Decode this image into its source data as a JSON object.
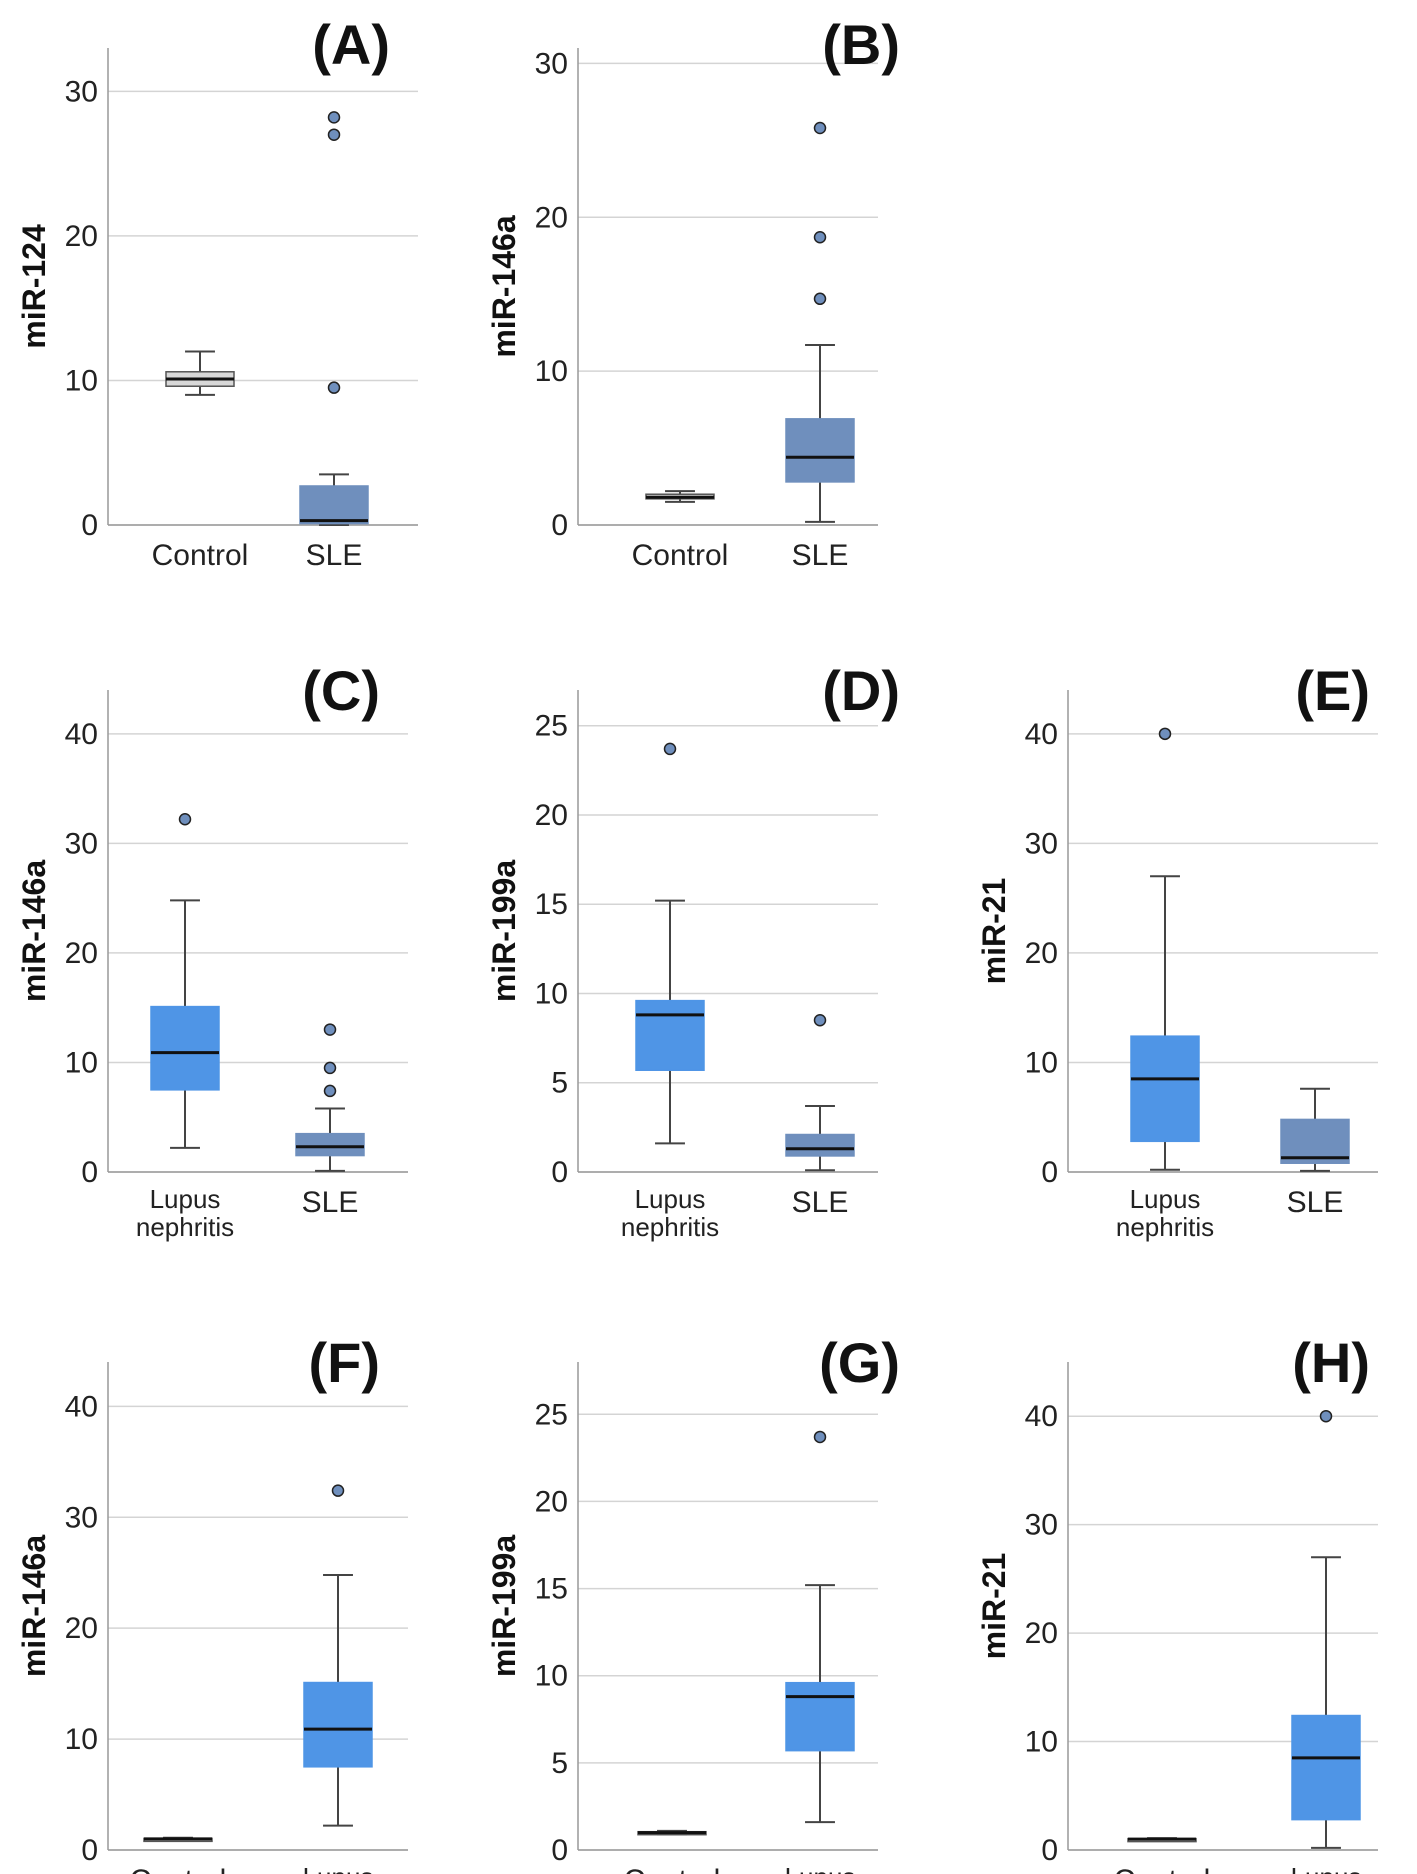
{
  "colors": {
    "box_blue": "#4f95e6",
    "box_slate": "#6f8fbd",
    "box_gray": "#d8d8d8",
    "grid": "#d4d4d4",
    "outlier_fill": "#6f8fbd"
  },
  "chart_data": [
    {
      "type": "boxplot",
      "panel": "(A)",
      "letter": "A",
      "ylabel": "miR-124",
      "ylim": [
        0,
        33
      ],
      "yticks": [
        0,
        10,
        20,
        30
      ],
      "categories": [
        "Control",
        "SLE"
      ],
      "series": [
        {
          "name": "Control",
          "color": "#d8d8d8",
          "min": 9,
          "q1": 9.6,
          "median": 10.1,
          "q3": 10.6,
          "max": 12,
          "outliers": []
        },
        {
          "name": "SLE",
          "color": "#6f8fbd",
          "min": 0,
          "q1": 0.1,
          "median": 0.3,
          "q3": 2.7,
          "max": 3.5,
          "outliers": [
            9.5,
            27,
            28.2
          ]
        }
      ]
    },
    {
      "type": "boxplot",
      "panel": "(B)",
      "letter": "B",
      "ylabel": "miR-146a",
      "ylim": [
        0,
        31
      ],
      "yticks": [
        0,
        10,
        20,
        30
      ],
      "categories": [
        "Control",
        "SLE"
      ],
      "series": [
        {
          "name": "Control",
          "color": "#d8d8d8",
          "min": 1.5,
          "q1": 1.7,
          "median": 1.8,
          "q3": 2.0,
          "max": 2.2,
          "outliers": []
        },
        {
          "name": "SLE",
          "color": "#6f8fbd",
          "min": 0.2,
          "q1": 2.8,
          "median": 4.4,
          "q3": 6.9,
          "max": 11.7,
          "outliers": [
            14.7,
            18.7,
            25.8
          ]
        }
      ]
    },
    {
      "type": "boxplot",
      "panel": "(C)",
      "letter": "C",
      "ylabel": "miR-146a",
      "ylim": [
        0,
        44
      ],
      "yticks": [
        0,
        10,
        20,
        30,
        40
      ],
      "categories": [
        "Lupus nephritis",
        "SLE"
      ],
      "series": [
        {
          "name": "Lupus nephritis",
          "color": "#4f95e6",
          "min": 2.2,
          "q1": 7.5,
          "median": 10.9,
          "q3": 15.1,
          "max": 24.8,
          "outliers": [
            32.2
          ]
        },
        {
          "name": "SLE",
          "color": "#6f8fbd",
          "min": 0.1,
          "q1": 1.5,
          "median": 2.3,
          "q3": 3.5,
          "max": 5.8,
          "outliers": [
            7.4,
            9.5,
            13
          ]
        }
      ]
    },
    {
      "type": "boxplot",
      "panel": "(D)",
      "letter": "D",
      "ylabel": "miR-199a",
      "ylim": [
        0,
        27
      ],
      "yticks": [
        0,
        5,
        10,
        15,
        20,
        25
      ],
      "categories": [
        "Lupus nephritis",
        "SLE"
      ],
      "series": [
        {
          "name": "Lupus nephritis",
          "color": "#4f95e6",
          "min": 1.6,
          "q1": 5.7,
          "median": 8.8,
          "q3": 9.6,
          "max": 15.2,
          "outliers": [
            23.7
          ]
        },
        {
          "name": "SLE",
          "color": "#6f8fbd",
          "min": 0.1,
          "q1": 0.9,
          "median": 1.3,
          "q3": 2.1,
          "max": 3.7,
          "outliers": [
            8.5
          ]
        }
      ]
    },
    {
      "type": "boxplot",
      "panel": "(E)",
      "letter": "E",
      "ylabel": "miR-21",
      "ylim": [
        0,
        44
      ],
      "yticks": [
        0,
        10,
        20,
        30,
        40
      ],
      "categories": [
        "Lupus nephritis",
        "SLE"
      ],
      "series": [
        {
          "name": "Lupus nephritis",
          "color": "#4f95e6",
          "min": 0.2,
          "q1": 2.8,
          "median": 8.5,
          "q3": 12.4,
          "max": 27,
          "outliers": [
            40
          ]
        },
        {
          "name": "SLE",
          "color": "#6f8fbd",
          "min": 0.1,
          "q1": 0.8,
          "median": 1.3,
          "q3": 4.8,
          "max": 7.6,
          "outliers": []
        }
      ]
    },
    {
      "type": "boxplot",
      "panel": "(F)",
      "letter": "F",
      "ylabel": "miR-146a",
      "ylim": [
        0,
        44
      ],
      "yticks": [
        0,
        10,
        20,
        30,
        40
      ],
      "categories": [
        "Control",
        "Lupus nephritis"
      ],
      "series": [
        {
          "name": "Control",
          "color": "#d8d8d8",
          "min": 0.9,
          "q1": 0.95,
          "median": 1.0,
          "q3": 1.05,
          "max": 1.1,
          "outliers": []
        },
        {
          "name": "Lupus nephritis",
          "color": "#4f95e6",
          "min": 2.2,
          "q1": 7.5,
          "median": 10.9,
          "q3": 15.1,
          "max": 24.8,
          "outliers": [
            32.4
          ]
        }
      ]
    },
    {
      "type": "boxplot",
      "panel": "(G)",
      "letter": "G",
      "ylabel": "miR-199a",
      "ylim": [
        0,
        28
      ],
      "yticks": [
        0,
        5,
        10,
        15,
        20,
        25
      ],
      "categories": [
        "Control",
        "Lupus nephritis"
      ],
      "series": [
        {
          "name": "Control",
          "color": "#d8d8d8",
          "min": 0.9,
          "q1": 0.95,
          "median": 1.0,
          "q3": 1.05,
          "max": 1.1,
          "outliers": []
        },
        {
          "name": "Lupus nephritis",
          "color": "#4f95e6",
          "min": 1.6,
          "q1": 5.7,
          "median": 8.8,
          "q3": 9.6,
          "max": 15.2,
          "outliers": [
            23.7
          ]
        }
      ]
    },
    {
      "type": "boxplot",
      "panel": "(H)",
      "letter": "H",
      "ylabel": "miR-21",
      "ylim": [
        0,
        45
      ],
      "yticks": [
        0,
        10,
        20,
        30,
        40
      ],
      "categories": [
        "Control",
        "Lupus nephritis"
      ],
      "series": [
        {
          "name": "Control",
          "color": "#d8d8d8",
          "min": 0.9,
          "q1": 0.95,
          "median": 1.0,
          "q3": 1.05,
          "max": 1.1,
          "outliers": []
        },
        {
          "name": "Lupus nephritis",
          "color": "#4f95e6",
          "min": 0.2,
          "q1": 2.8,
          "median": 8.5,
          "q3": 12.4,
          "max": 27,
          "outliers": [
            40
          ]
        }
      ]
    }
  ]
}
